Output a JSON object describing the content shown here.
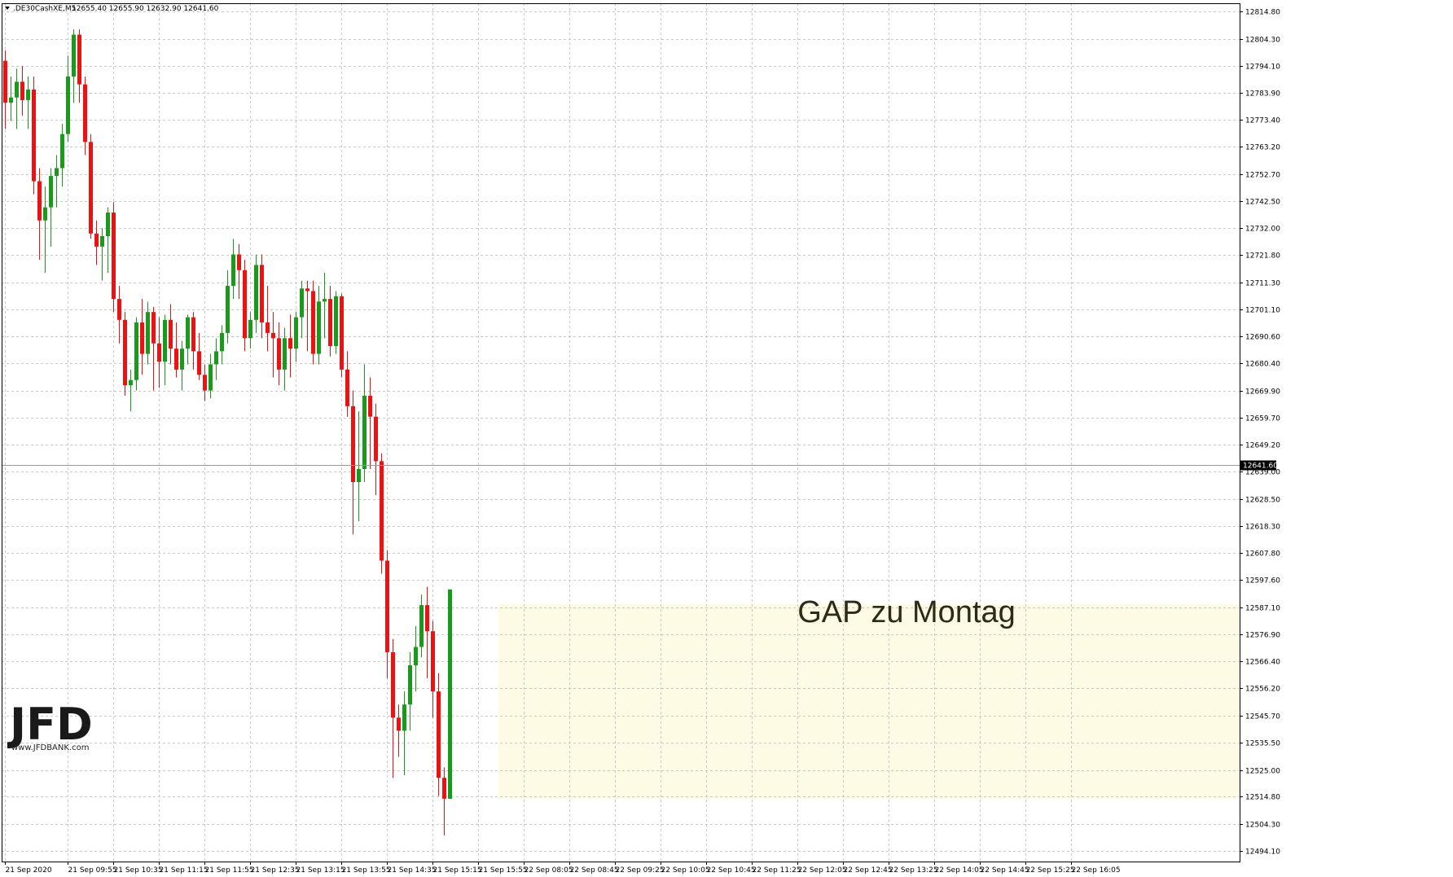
{
  "header": {
    "symbol": ".DE30CashXE,M5",
    "ohlc": "12655.40 12655.90 12632.90 12641.60"
  },
  "annotation": {
    "text": "GAP zu Montag"
  },
  "watermark": {
    "logo": "JFD",
    "url": "www.JFDBANK.com"
  },
  "colors": {
    "bull": "#1a9a1a",
    "bear": "#ee1111",
    "grid": "#c9c9c9",
    "gap_fill": "#fdfbe3",
    "price_line": "#9a9a9a",
    "price_label_bg": "#000000"
  },
  "chart_data": {
    "type": "candlestick",
    "title": "",
    "current_price": "12641.60",
    "ylim": [
      12490,
      12818
    ],
    "y_ticks": [
      "12814.80",
      "12804.30",
      "12794.10",
      "12783.90",
      "12773.40",
      "12763.20",
      "12752.70",
      "12742.50",
      "12732.00",
      "12721.80",
      "12711.30",
      "12701.10",
      "12690.60",
      "12680.40",
      "12669.90",
      "12659.70",
      "12649.20",
      "12639.00",
      "12628.50",
      "12618.30",
      "12607.80",
      "12597.60",
      "12587.10",
      "12576.90",
      "12566.40",
      "12556.20",
      "12545.70",
      "12535.50",
      "12525.00",
      "12514.80",
      "12504.30",
      "12494.10"
    ],
    "x_ticks": [
      {
        "label": "21 Sep 2020",
        "index": 0
      },
      {
        "label": "21 Sep 09:55",
        "index": 11
      },
      {
        "label": "21 Sep 10:35",
        "index": 19
      },
      {
        "label": "21 Sep 11:15",
        "index": 27
      },
      {
        "label": "21 Sep 11:55",
        "index": 35
      },
      {
        "label": "21 Sep 12:35",
        "index": 43
      },
      {
        "label": "21 Sep 13:15",
        "index": 51
      },
      {
        "label": "21 Sep 13:55",
        "index": 59
      },
      {
        "label": "21 Sep 14:35",
        "index": 67
      },
      {
        "label": "21 Sep 15:15",
        "index": 75
      },
      {
        "label": "21 Sep 15:55",
        "index": 83
      },
      {
        "label": "22 Sep 08:05",
        "index": 91
      },
      {
        "label": "22 Sep 08:45",
        "index": 99
      },
      {
        "label": "22 Sep 09:25",
        "index": 107
      },
      {
        "label": "22 Sep 10:05",
        "index": 115
      },
      {
        "label": "22 Sep 10:45",
        "index": 123
      },
      {
        "label": "22 Sep 11:25",
        "index": 131
      },
      {
        "label": "22 Sep 12:05",
        "index": 139
      },
      {
        "label": "22 Sep 12:45",
        "index": 147
      },
      {
        "label": "22 Sep 13:25",
        "index": 155
      },
      {
        "label": "22 Sep 14:05",
        "index": 163
      },
      {
        "label": "22 Sep 14:45",
        "index": 171
      },
      {
        "label": "22 Sep 15:25",
        "index": 179
      },
      {
        "label": "22 Sep 16:05",
        "index": 187
      }
    ],
    "gap_zone": {
      "start_index": 87,
      "high": 12588.5,
      "low": 12514.0
    },
    "candles": [
      [
        12796,
        12800,
        12770,
        12780
      ],
      [
        12780,
        12790,
        12773,
        12782
      ],
      [
        12782,
        12793,
        12770,
        12788
      ],
      [
        12788,
        12794,
        12775,
        12781
      ],
      [
        12781,
        12790,
        12770,
        12785
      ],
      [
        12785,
        12790,
        12745,
        12750
      ],
      [
        12750,
        12755,
        12720,
        12735
      ],
      [
        12735,
        12748,
        12715,
        12740
      ],
      [
        12740,
        12755,
        12725,
        12752
      ],
      [
        12752,
        12760,
        12740,
        12755
      ],
      [
        12755,
        12772,
        12748,
        12768
      ],
      [
        12768,
        12798,
        12765,
        12790
      ],
      [
        12790,
        12808,
        12780,
        12806
      ],
      [
        12806,
        12808,
        12780,
        12787
      ],
      [
        12787,
        12790,
        12760,
        12765
      ],
      [
        12765,
        12768,
        12728,
        12730
      ],
      [
        12730,
        12735,
        12718,
        12725
      ],
      [
        12725,
        12732,
        12712,
        12729
      ],
      [
        12729,
        12740,
        12715,
        12738
      ],
      [
        12738,
        12742,
        12700,
        12705
      ],
      [
        12705,
        12710,
        12688,
        12697
      ],
      [
        12697,
        12700,
        12668,
        12672
      ],
      [
        12672,
        12678,
        12662,
        12674
      ],
      [
        12674,
        12698,
        12670,
        12696
      ],
      [
        12696,
        12705,
        12676,
        12684
      ],
      [
        12684,
        12704,
        12680,
        12700
      ],
      [
        12700,
        12702,
        12670,
        12688
      ],
      [
        12688,
        12698,
        12671,
        12681
      ],
      [
        12681,
        12699,
        12672,
        12697
      ],
      [
        12697,
        12703,
        12680,
        12686
      ],
      [
        12686,
        12696,
        12675,
        12678
      ],
      [
        12678,
        12689,
        12670,
        12686
      ],
      [
        12686,
        12699,
        12680,
        12698
      ],
      [
        12698,
        12700,
        12678,
        12685
      ],
      [
        12685,
        12692,
        12674,
        12676
      ],
      [
        12676,
        12680,
        12666,
        12670
      ],
      [
        12670,
        12684,
        12667,
        12680
      ],
      [
        12680,
        12690,
        12674,
        12685
      ],
      [
        12685,
        12695,
        12680,
        12692
      ],
      [
        12692,
        12716,
        12688,
        12710
      ],
      [
        12710,
        12728,
        12705,
        12722
      ],
      [
        12722,
        12726,
        12705,
        12716
      ],
      [
        12716,
        12720,
        12685,
        12690
      ],
      [
        12690,
        12700,
        12686,
        12697
      ],
      [
        12697,
        12722,
        12692,
        12718
      ],
      [
        12718,
        12722,
        12690,
        12696
      ],
      [
        12696,
        12710,
        12685,
        12692
      ],
      [
        12692,
        12700,
        12675,
        12690
      ],
      [
        12690,
        12696,
        12672,
        12678
      ],
      [
        12678,
        12694,
        12670,
        12690
      ],
      [
        12690,
        12699,
        12675,
        12686
      ],
      [
        12686,
        12700,
        12681,
        12698
      ],
      [
        12698,
        12712,
        12690,
        12709
      ],
      [
        12709,
        12712,
        12685,
        12708
      ],
      [
        12708,
        12712,
        12680,
        12684
      ],
      [
        12684,
        12710,
        12680,
        12704
      ],
      [
        12704,
        12715,
        12690,
        12705
      ],
      [
        12705,
        12710,
        12683,
        12687
      ],
      [
        12687,
        12708,
        12684,
        12706
      ],
      [
        12706,
        12707,
        12675,
        12678
      ],
      [
        12678,
        12685,
        12660,
        12664
      ],
      [
        12664,
        12670,
        12615,
        12635
      ],
      [
        12635,
        12662,
        12620,
        12640
      ],
      [
        12640,
        12680,
        12635,
        12668
      ],
      [
        12668,
        12675,
        12640,
        12660
      ],
      [
        12660,
        12665,
        12630,
        12643
      ],
      [
        12643,
        12646,
        12600,
        12605
      ],
      [
        12605,
        12609,
        12560,
        12570
      ],
      [
        12570,
        12575,
        12522,
        12545
      ],
      [
        12545,
        12550,
        12530,
        12540
      ],
      [
        12540,
        12555,
        12523,
        12550
      ],
      [
        12550,
        12570,
        12540,
        12565
      ],
      [
        12565,
        12580,
        12555,
        12572
      ],
      [
        12572,
        12592,
        12568,
        12588
      ],
      [
        12588,
        12595,
        12560,
        12578
      ],
      [
        12578,
        12582,
        12545,
        12555
      ],
      [
        12555,
        12562,
        12515,
        12522
      ],
      [
        12522,
        12526,
        12500,
        12514
      ],
      [
        12514,
        12594,
        12514,
        12594
      ]
    ]
  }
}
